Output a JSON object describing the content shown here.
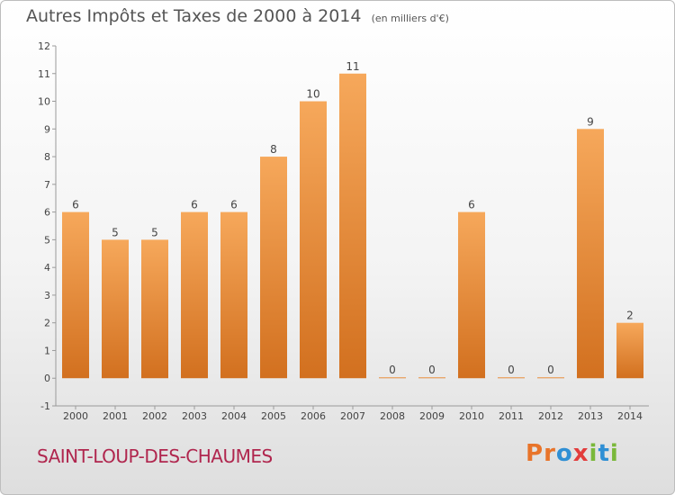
{
  "header": {
    "title": "Autres Impôts et Taxes de 2000 à 2014",
    "unit_note": "(en milliers d'€)"
  },
  "footer": {
    "commune": "SAINT-LOUP-DES-CHAUMES",
    "brand_letters": [
      "P",
      "r",
      "o",
      "x",
      "i",
      "t",
      "i"
    ],
    "brand_colors": [
      "#e8742a",
      "#e8742a",
      "#2f8fd4",
      "#e23c3c",
      "#7ab83a",
      "#2f8fd4",
      "#7ab83a"
    ]
  },
  "colors": {
    "bar_top": "#f6a85b",
    "bar_bottom": "#d2701f",
    "title": "#555555",
    "commune": "#b0264e"
  },
  "chart_data": {
    "type": "bar",
    "categories": [
      "2000",
      "2001",
      "2002",
      "2003",
      "2004",
      "2005",
      "2006",
      "2007",
      "2008",
      "2009",
      "2010",
      "2011",
      "2012",
      "2013",
      "2014"
    ],
    "values": [
      6,
      5,
      5,
      6,
      6,
      8,
      10,
      11,
      0,
      0,
      6,
      0,
      0,
      9,
      2
    ],
    "data_labels": [
      "6",
      "5",
      "5",
      "6",
      "6",
      "8",
      "10",
      "11",
      "0",
      "0",
      "6",
      "0",
      "0",
      "9",
      "2"
    ],
    "yticks": [
      "-1",
      "0",
      "1",
      "2",
      "3",
      "4",
      "5",
      "6",
      "7",
      "8",
      "9",
      "10",
      "11",
      "12"
    ],
    "ylim": [
      -1,
      12
    ],
    "grid": false,
    "title": "Autres Impôts et Taxes de 2000 à 2014",
    "xlabel": "",
    "ylabel": ""
  }
}
